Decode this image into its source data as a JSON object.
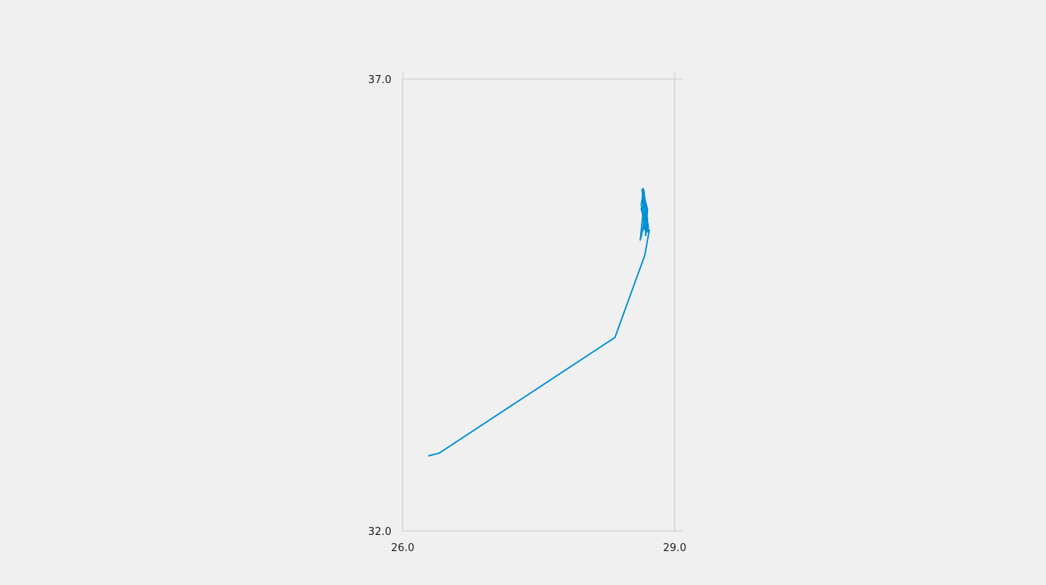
{
  "chart_data": {
    "type": "line",
    "title": "",
    "xlabel": "",
    "ylabel": "",
    "xlim": [
      26.0,
      29.0
    ],
    "ylim": [
      32.0,
      37.0
    ],
    "x_ticks": [
      "26.0",
      "29.0"
    ],
    "y_ticks": [
      "32.0",
      "37.0"
    ],
    "grid": "on",
    "legend": "none",
    "series": [
      {
        "color": "#008fd5",
        "x": [
          26.28,
          26.4,
          28.34,
          28.67,
          28.72,
          28.67,
          28.66,
          28.64,
          28.7,
          28.68,
          28.66,
          28.71,
          28.63,
          28.69,
          28.66,
          28.68,
          28.62,
          28.66,
          28.7,
          28.65,
          28.68,
          28.64,
          28.67,
          28.71,
          28.66,
          28.63,
          28.69,
          28.66,
          28.7,
          28.65,
          28.67
        ],
        "y": [
          32.83,
          32.86,
          34.14,
          35.05,
          35.33,
          35.34,
          35.45,
          35.78,
          35.56,
          35.27,
          35.68,
          35.36,
          35.57,
          35.31,
          35.74,
          35.47,
          35.22,
          35.62,
          35.42,
          35.79,
          35.38,
          35.69,
          35.5,
          35.3,
          35.77,
          35.61,
          35.39,
          35.66,
          35.45,
          35.33,
          35.55
        ]
      }
    ]
  }
}
